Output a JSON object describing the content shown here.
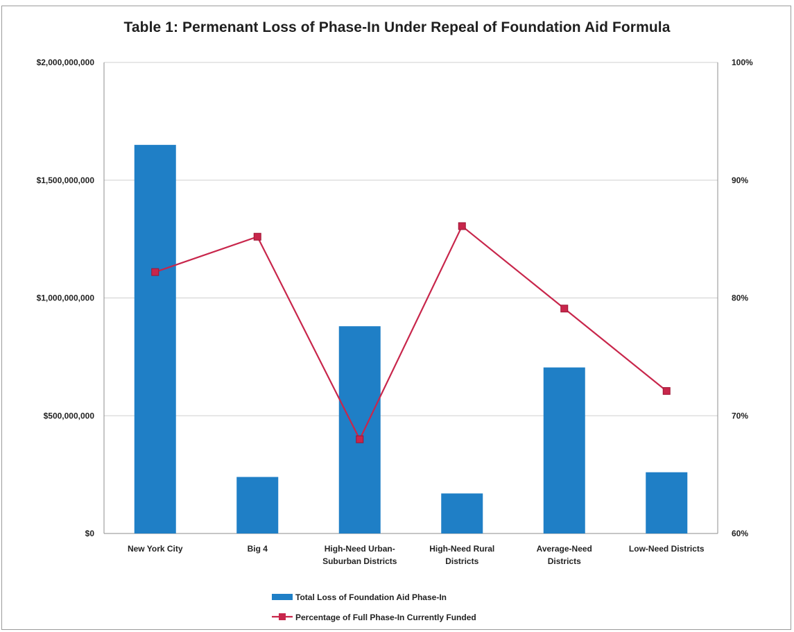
{
  "chart_data": {
    "type": "bar",
    "title": "Table 1: Permenant Loss of Phase-In Under Repeal of Foundation Aid Formula",
    "categories": [
      [
        "New York City"
      ],
      [
        "Big 4"
      ],
      [
        "High-Need Urban-",
        "Suburban Districts"
      ],
      [
        "High-Need Rural",
        "Districts"
      ],
      [
        "Average-Need",
        "Districts"
      ],
      [
        "Low-Need Districts"
      ]
    ],
    "y_left": {
      "ylim": [
        0,
        2000000000
      ],
      "ticks": [
        0,
        500000000,
        1000000000,
        1500000000,
        2000000000
      ],
      "tick_labels": [
        "$0",
        "$500,000,000",
        "$1,000,000,000",
        "$1,500,000,000",
        "$2,000,000,000"
      ]
    },
    "y_right": {
      "ylim": [
        60,
        100
      ],
      "ticks": [
        60,
        70,
        80,
        90,
        100
      ],
      "tick_labels": [
        "60%",
        "70%",
        "80%",
        "90%",
        "100%"
      ]
    },
    "series": [
      {
        "name": "Total Loss of Foundation Aid Phase-In",
        "type": "bar",
        "axis": "left",
        "color": "#1f7fc6",
        "values": [
          1650000000,
          240000000,
          880000000,
          170000000,
          705000000,
          260000000
        ]
      },
      {
        "name": "Percentage of Full Phase-In Currently Funded",
        "type": "line",
        "axis": "right",
        "color": "#c8264b",
        "marker": "square",
        "values": [
          82.2,
          85.2,
          68.0,
          86.1,
          79.1,
          72.1
        ]
      }
    ],
    "grid": "horizontal",
    "legend_placement": "bottom-center"
  }
}
